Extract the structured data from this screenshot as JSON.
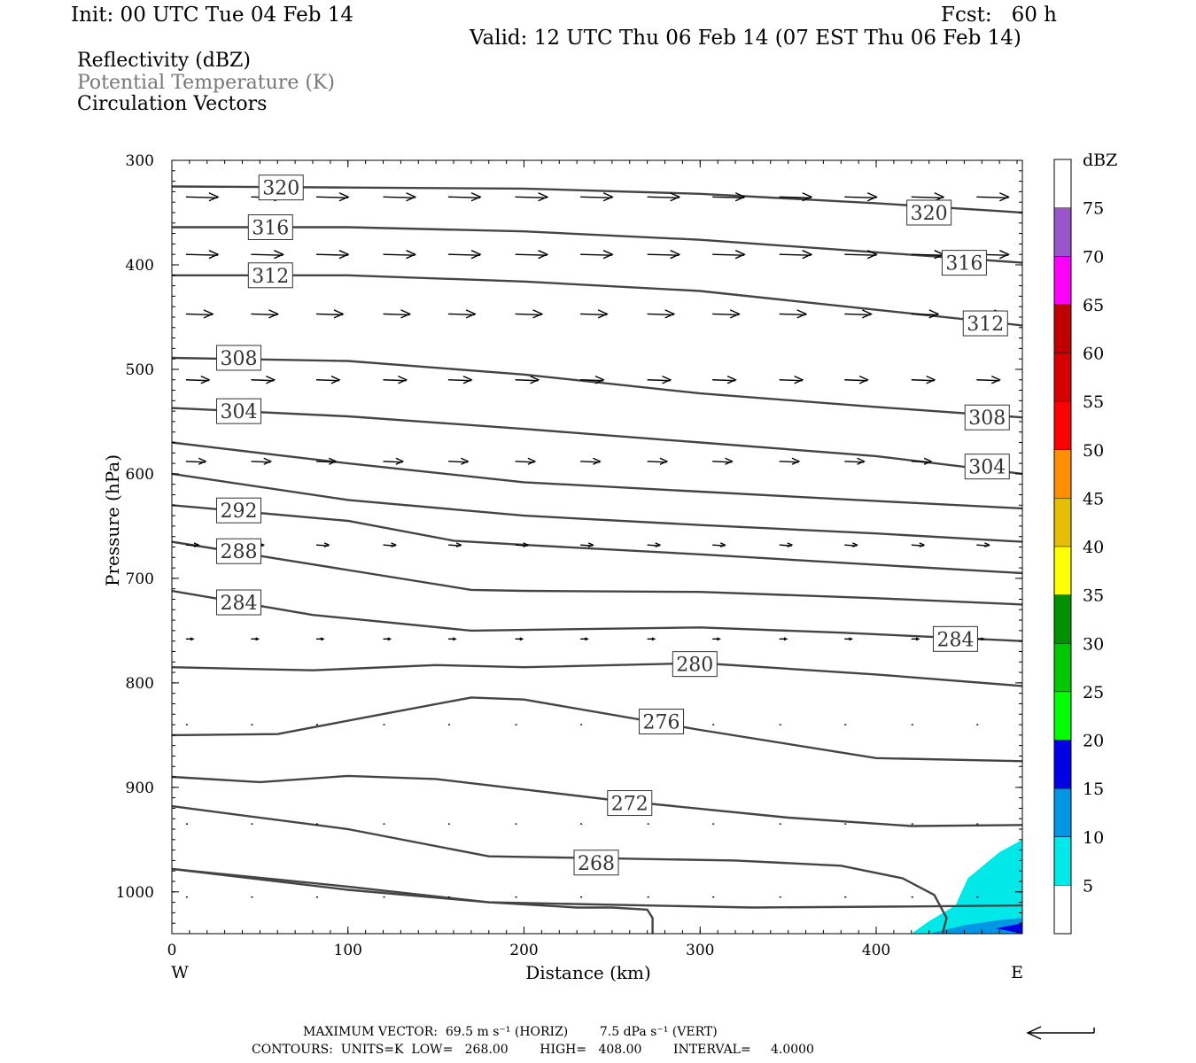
{
  "header": {
    "init": "Init: 00 UTC Tue 04 Feb 14",
    "fcst": "Fcst:   60 h",
    "valid": "Valid: 12 UTC Thu 06 Feb 14 (07 EST Thu 06 Feb 14)",
    "fields": [
      "Reflectivity (dBZ)",
      "Potential Temperature (K)",
      "Circulation Vectors"
    ]
  },
  "footer": {
    "vector_line": "MAXIMUM VECTOR:  69.5 m s⁻¹ (HORIZ)        7.5 dPa s⁻¹ (VERT)",
    "contour_line": "CONTOURS:  UNITS=K  LOW=   268.00        HIGH=   408.00        INTERVAL=     4.0000"
  },
  "colors": {
    "contour": "#444444",
    "refl_light": "#00e8e8",
    "refl_mid": "#0096e6",
    "refl_dark": "#0000e6"
  },
  "chart_data": {
    "type": "cross-section",
    "xlabel": "Distance (km)",
    "ylabel": "Pressure (hPa)",
    "xlim": [
      0,
      483
    ],
    "ylim": [
      300,
      1040
    ],
    "x_ticks": [
      0,
      100,
      200,
      300,
      400
    ],
    "x_tick_labels": [
      "0",
      "100",
      "200",
      "300",
      "400"
    ],
    "y_ticks": [
      300,
      400,
      500,
      600,
      700,
      800,
      900,
      1000
    ],
    "y_tick_labels": [
      "300",
      "400",
      "500",
      "600",
      "700",
      "800",
      "900",
      "1000"
    ],
    "end_labels": {
      "west": "W",
      "east": "E"
    },
    "colorbar": {
      "unit": "dBZ",
      "levels": [
        5,
        10,
        15,
        20,
        25,
        30,
        35,
        40,
        45,
        50,
        55,
        60,
        65,
        70,
        75
      ],
      "level_labels": [
        "5",
        "10",
        "15",
        "20",
        "25",
        "30",
        "35",
        "40",
        "45",
        "50",
        "55",
        "60",
        "65",
        "70",
        "75"
      ],
      "colors": [
        "#ffffff",
        "#00e8e8",
        "#0096e6",
        "#0000e6",
        "#00ff00",
        "#00c800",
        "#009000",
        "#ffff00",
        "#e6be00",
        "#ff8f00",
        "#ff0000",
        "#d60000",
        "#c00000",
        "#ff00ff",
        "#9955c9",
        "#ffffff"
      ]
    },
    "contours": [
      {
        "label": "320",
        "labels_at": [
          [
            62,
            326
          ],
          [
            430,
            350
          ]
        ],
        "points": [
          [
            0,
            325
          ],
          [
            100,
            326
          ],
          [
            200,
            327
          ],
          [
            300,
            332
          ],
          [
            400,
            341
          ],
          [
            483,
            350
          ]
        ]
      },
      {
        "label": "316",
        "labels_at": [
          [
            56,
            364
          ],
          [
            450,
            398
          ]
        ],
        "points": [
          [
            0,
            364
          ],
          [
            100,
            364
          ],
          [
            200,
            368
          ],
          [
            300,
            376
          ],
          [
            400,
            388
          ],
          [
            483,
            398
          ]
        ]
      },
      {
        "label": "312",
        "labels_at": [
          [
            56,
            410
          ],
          [
            462,
            456
          ]
        ],
        "points": [
          [
            0,
            410
          ],
          [
            100,
            410
          ],
          [
            200,
            416
          ],
          [
            300,
            425
          ],
          [
            400,
            443
          ],
          [
            483,
            458
          ]
        ]
      },
      {
        "label": "308",
        "labels_at": [
          [
            38,
            489
          ],
          [
            463,
            546
          ]
        ],
        "points": [
          [
            0,
            489
          ],
          [
            100,
            492
          ],
          [
            200,
            505
          ],
          [
            300,
            523
          ],
          [
            400,
            536
          ],
          [
            483,
            546
          ]
        ]
      },
      {
        "label": "304",
        "labels_at": [
          [
            38,
            540
          ],
          [
            463,
            593
          ]
        ],
        "points": [
          [
            0,
            537
          ],
          [
            100,
            545
          ],
          [
            200,
            557
          ],
          [
            300,
            570
          ],
          [
            400,
            583
          ],
          [
            483,
            600
          ]
        ]
      },
      {
        "label": "",
        "labels_at": [],
        "points": [
          [
            0,
            570
          ],
          [
            40,
            578
          ],
          [
            100,
            590
          ],
          [
            200,
            608
          ],
          [
            300,
            617
          ],
          [
            400,
            626
          ],
          [
            483,
            633
          ]
        ]
      },
      {
        "label": "",
        "labels_at": [],
        "points": [
          [
            0,
            600
          ],
          [
            100,
            625
          ],
          [
            200,
            640
          ],
          [
            300,
            649
          ],
          [
            400,
            657
          ],
          [
            483,
            665
          ]
        ]
      },
      {
        "label": "292",
        "labels_at": [
          [
            38,
            635
          ]
        ],
        "points": [
          [
            0,
            630
          ],
          [
            100,
            645
          ],
          [
            160,
            664
          ],
          [
            200,
            668
          ],
          [
            300,
            677
          ],
          [
            400,
            687
          ],
          [
            483,
            695
          ]
        ]
      },
      {
        "label": "288",
        "labels_at": [
          [
            38,
            674
          ]
        ],
        "points": [
          [
            0,
            665
          ],
          [
            100,
            692
          ],
          [
            170,
            711
          ],
          [
            200,
            712
          ],
          [
            300,
            713
          ],
          [
            400,
            719
          ],
          [
            483,
            725
          ]
        ]
      },
      {
        "label": "284",
        "labels_at": [
          [
            38,
            723
          ],
          [
            445,
            758
          ]
        ],
        "points": [
          [
            0,
            712
          ],
          [
            80,
            735
          ],
          [
            170,
            750
          ],
          [
            300,
            747
          ],
          [
            380,
            752
          ],
          [
            483,
            760
          ]
        ]
      },
      {
        "label": "280",
        "labels_at": [
          [
            297,
            782
          ]
        ],
        "points": [
          [
            0,
            785
          ],
          [
            80,
            788
          ],
          [
            150,
            783
          ],
          [
            200,
            785
          ],
          [
            300,
            781
          ],
          [
            400,
            792
          ],
          [
            483,
            803
          ]
        ]
      },
      {
        "label": "276",
        "labels_at": [
          [
            278,
            837
          ]
        ],
        "points": [
          [
            0,
            850
          ],
          [
            60,
            849
          ],
          [
            110,
            833
          ],
          [
            170,
            814
          ],
          [
            200,
            816
          ],
          [
            300,
            845
          ],
          [
            400,
            872
          ],
          [
            483,
            875
          ]
        ]
      },
      {
        "label": "272",
        "labels_at": [
          [
            260,
            915
          ]
        ],
        "points": [
          [
            0,
            890
          ],
          [
            50,
            895
          ],
          [
            100,
            889
          ],
          [
            150,
            892
          ],
          [
            250,
            912
          ],
          [
            350,
            929
          ],
          [
            420,
            937
          ],
          [
            483,
            936
          ]
        ]
      },
      {
        "label": "",
        "labels_at": [],
        "points": [
          [
            0,
            918
          ],
          [
            100,
            940
          ],
          [
            180,
            966
          ],
          [
            320,
            970
          ],
          [
            380,
            975
          ],
          [
            415,
            987
          ],
          [
            433,
            1003
          ],
          [
            440,
            1025
          ],
          [
            435,
            1057
          ]
        ]
      },
      {
        "label": "268",
        "labels_at": [
          [
            241,
            972
          ]
        ],
        "points": [
          [
            0,
            978
          ],
          [
            100,
            998
          ],
          [
            180,
            1010
          ],
          [
            330,
            1015
          ],
          [
            420,
            1014
          ],
          [
            483,
            1013
          ]
        ]
      },
      {
        "label": "",
        "labels_at": [],
        "points": [
          [
            0,
            978
          ],
          [
            100,
            995
          ],
          [
            180,
            1010
          ],
          [
            230,
            1015
          ],
          [
            250,
            1015
          ],
          [
            270,
            1017
          ],
          [
            273,
            1025
          ],
          [
            273,
            1050
          ]
        ]
      }
    ],
    "vector_rows": [
      {
        "p": 335,
        "len": 36
      },
      {
        "p": 390,
        "len": 36
      },
      {
        "p": 447,
        "len": 30
      },
      {
        "p": 510,
        "len": 26
      },
      {
        "p": 588,
        "len": 22
      },
      {
        "p": 668,
        "len": 14
      },
      {
        "p": 758,
        "len": 8
      },
      {
        "p": 840,
        "len": 2
      },
      {
        "p": 935,
        "len": 2
      },
      {
        "p": 1005,
        "len": 2
      }
    ],
    "vector_x": [
      8,
      45,
      82,
      120,
      157,
      195,
      232,
      270,
      307,
      345,
      382,
      420,
      457
    ],
    "reflectivity": [
      {
        "level": 5,
        "points": [
          [
            420,
            1040
          ],
          [
            430,
            1028
          ],
          [
            445,
            1013
          ],
          [
            452,
            987
          ],
          [
            470,
            962
          ],
          [
            483,
            950
          ],
          [
            483,
            1040
          ]
        ]
      },
      {
        "level": 10,
        "points": [
          [
            430,
            1040
          ],
          [
            450,
            1032
          ],
          [
            470,
            1027
          ],
          [
            483,
            1025
          ],
          [
            483,
            1040
          ]
        ]
      },
      {
        "level": 15,
        "points": [
          [
            468,
            1035
          ],
          [
            483,
            1030
          ],
          [
            483,
            1040
          ]
        ]
      }
    ]
  }
}
